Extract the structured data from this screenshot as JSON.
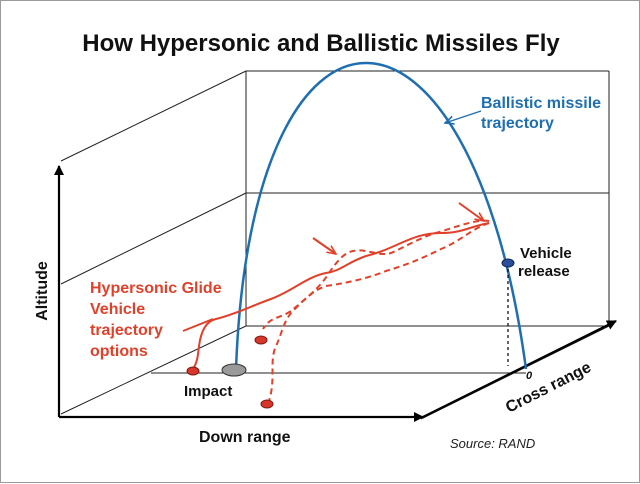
{
  "title": "How Hypersonic and Ballistic Missiles Fly",
  "axes": {
    "altitude": "Altitude",
    "down_range": "Down range",
    "cross_range": "Cross range",
    "cross_range_zero": "0"
  },
  "labels": {
    "ballistic_line1": "Ballistic missile",
    "ballistic_line2": "trajectory",
    "hgv_line1": "Hypersonic Glide",
    "hgv_line2": "Vehicle",
    "hgv_line3": "trajectory",
    "hgv_line4": "options",
    "vehicle_release_line1": "Vehicle",
    "vehicle_release_line2": "release",
    "impact": "Impact"
  },
  "source": "Source: RAND",
  "colors": {
    "ballistic": "#1f6fb0",
    "hypersonic": "#e0412a",
    "impact_marker": "#9a9a9a",
    "release_marker": "#2a4f9a",
    "text": "#111111"
  }
}
